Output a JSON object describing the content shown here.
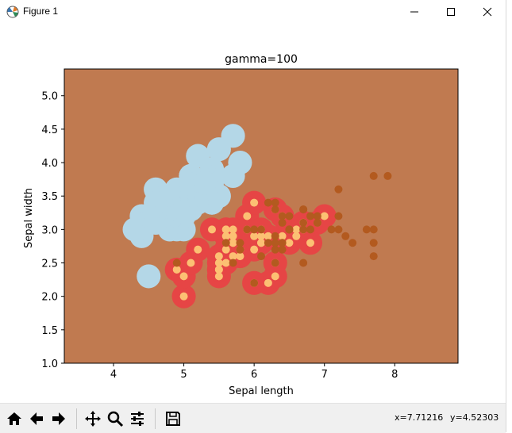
{
  "window": {
    "title": "Figure 1"
  },
  "toolbar": {
    "icons": [
      "home-icon",
      "back-arrow-icon",
      "forward-arrow-icon",
      "pan-icon",
      "zoom-icon",
      "configure-subplots-icon",
      "save-icon"
    ],
    "coord_x": "x=7.71216",
    "coord_y": "y=4.52303"
  },
  "colors": {
    "background_region": "#c07a50",
    "class_light_blue": "#b4d7e7",
    "class_red": "#e64545",
    "point_orange_light": "#fcc073",
    "point_brown": "#b35a1f"
  },
  "chart_data": {
    "type": "scatter",
    "title": "gamma=100",
    "xlabel": "Sepal length",
    "ylabel": "Sepal width",
    "xlim": [
      3.3,
      8.9
    ],
    "ylim": [
      1.0,
      5.4
    ],
    "xticks": [
      "4",
      "5",
      "6",
      "7",
      "8"
    ],
    "yticks": [
      "1.0",
      "1.5",
      "2.0",
      "2.5",
      "3.0",
      "3.5",
      "4.0",
      "4.5",
      "5.0"
    ],
    "series": [
      {
        "color": "#b4d7e7",
        "points": [
          [
            5.1,
            3.5
          ],
          [
            4.9,
            3.0
          ],
          [
            4.7,
            3.2
          ],
          [
            4.6,
            3.1
          ],
          [
            5.0,
            3.6
          ],
          [
            5.4,
            3.9
          ],
          [
            4.6,
            3.4
          ],
          [
            5.0,
            3.4
          ],
          [
            4.4,
            2.9
          ],
          [
            4.9,
            3.1
          ],
          [
            5.4,
            3.7
          ],
          [
            4.8,
            3.4
          ],
          [
            4.8,
            3.0
          ],
          [
            4.3,
            3.0
          ],
          [
            5.8,
            4.0
          ],
          [
            5.7,
            4.4
          ],
          [
            5.4,
            3.9
          ],
          [
            5.1,
            3.5
          ],
          [
            5.7,
            3.8
          ],
          [
            5.1,
            3.8
          ],
          [
            5.4,
            3.4
          ],
          [
            5.1,
            3.7
          ],
          [
            4.6,
            3.6
          ],
          [
            5.1,
            3.3
          ],
          [
            4.8,
            3.4
          ],
          [
            5.0,
            3.0
          ],
          [
            5.0,
            3.4
          ],
          [
            5.2,
            3.5
          ],
          [
            5.2,
            3.4
          ],
          [
            4.7,
            3.2
          ],
          [
            4.8,
            3.1
          ],
          [
            5.4,
            3.4
          ],
          [
            5.2,
            4.1
          ],
          [
            5.5,
            4.2
          ],
          [
            4.9,
            3.1
          ],
          [
            5.0,
            3.2
          ],
          [
            5.5,
            3.5
          ],
          [
            4.9,
            3.6
          ],
          [
            4.4,
            3.0
          ],
          [
            5.1,
            3.4
          ],
          [
            5.0,
            3.5
          ],
          [
            4.5,
            2.3
          ],
          [
            4.4,
            3.2
          ],
          [
            5.0,
            3.5
          ],
          [
            5.1,
            3.8
          ],
          [
            4.8,
            3.0
          ],
          [
            5.1,
            3.8
          ],
          [
            4.6,
            3.2
          ],
          [
            5.3,
            3.7
          ],
          [
            5.0,
            3.3
          ]
        ]
      },
      {
        "color": "#fcc073",
        "points": [
          [
            7.0,
            3.2
          ],
          [
            6.4,
            3.2
          ],
          [
            6.9,
            3.1
          ],
          [
            5.5,
            2.3
          ],
          [
            6.5,
            2.8
          ],
          [
            5.7,
            2.8
          ],
          [
            6.3,
            3.3
          ],
          [
            4.9,
            2.4
          ],
          [
            6.6,
            2.9
          ],
          [
            5.2,
            2.7
          ],
          [
            5.0,
            2.0
          ],
          [
            5.9,
            3.0
          ],
          [
            6.0,
            2.2
          ],
          [
            6.1,
            2.9
          ],
          [
            5.6,
            2.9
          ],
          [
            6.7,
            3.1
          ],
          [
            5.6,
            3.0
          ],
          [
            5.8,
            2.7
          ],
          [
            6.2,
            2.2
          ],
          [
            5.6,
            2.5
          ],
          [
            5.9,
            3.2
          ],
          [
            6.1,
            2.8
          ],
          [
            6.3,
            2.5
          ],
          [
            6.1,
            2.8
          ],
          [
            6.4,
            2.9
          ],
          [
            6.6,
            3.0
          ],
          [
            6.8,
            2.8
          ],
          [
            6.7,
            3.0
          ],
          [
            6.0,
            2.9
          ],
          [
            5.7,
            2.6
          ],
          [
            5.5,
            2.4
          ],
          [
            5.5,
            2.4
          ],
          [
            5.8,
            2.7
          ],
          [
            6.0,
            2.7
          ],
          [
            5.4,
            3.0
          ],
          [
            6.0,
            3.4
          ],
          [
            6.7,
            3.1
          ],
          [
            6.3,
            2.3
          ],
          [
            5.6,
            3.0
          ],
          [
            5.5,
            2.5
          ],
          [
            5.5,
            2.6
          ],
          [
            6.1,
            3.0
          ],
          [
            5.8,
            2.6
          ],
          [
            5.0,
            2.3
          ],
          [
            5.6,
            2.7
          ],
          [
            5.7,
            3.0
          ],
          [
            5.7,
            2.9
          ],
          [
            6.2,
            2.9
          ],
          [
            5.1,
            2.5
          ],
          [
            5.7,
            2.8
          ]
        ]
      },
      {
        "color": "#b35a1f",
        "points": [
          [
            6.3,
            3.3
          ],
          [
            5.8,
            2.7
          ],
          [
            7.1,
            3.0
          ],
          [
            6.3,
            2.9
          ],
          [
            6.5,
            3.0
          ],
          [
            7.6,
            3.0
          ],
          [
            4.9,
            2.5
          ],
          [
            7.3,
            2.9
          ],
          [
            6.7,
            2.5
          ],
          [
            7.2,
            3.6
          ],
          [
            6.5,
            3.2
          ],
          [
            6.4,
            2.7
          ],
          [
            6.8,
            3.0
          ],
          [
            5.7,
            2.5
          ],
          [
            5.8,
            2.8
          ],
          [
            6.4,
            3.2
          ],
          [
            6.5,
            3.0
          ],
          [
            7.7,
            3.8
          ],
          [
            7.7,
            2.6
          ],
          [
            6.0,
            2.2
          ],
          [
            6.9,
            3.2
          ],
          [
            5.6,
            2.8
          ],
          [
            7.7,
            2.8
          ],
          [
            6.3,
            2.7
          ],
          [
            6.7,
            3.3
          ],
          [
            7.2,
            3.2
          ],
          [
            6.2,
            2.8
          ],
          [
            6.1,
            3.0
          ],
          [
            6.4,
            2.8
          ],
          [
            7.2,
            3.0
          ],
          [
            7.4,
            2.8
          ],
          [
            7.9,
            3.8
          ],
          [
            6.4,
            2.8
          ],
          [
            6.3,
            2.8
          ],
          [
            6.1,
            2.6
          ],
          [
            7.7,
            3.0
          ],
          [
            6.3,
            3.4
          ],
          [
            6.4,
            3.1
          ],
          [
            6.0,
            3.0
          ],
          [
            6.9,
            3.1
          ],
          [
            6.7,
            3.1
          ],
          [
            6.9,
            3.1
          ],
          [
            5.8,
            2.7
          ],
          [
            6.8,
            3.2
          ],
          [
            6.7,
            3.3
          ],
          [
            6.7,
            3.0
          ],
          [
            6.3,
            2.5
          ],
          [
            6.5,
            3.0
          ],
          [
            6.2,
            3.4
          ],
          [
            5.9,
            3.0
          ]
        ]
      }
    ]
  }
}
